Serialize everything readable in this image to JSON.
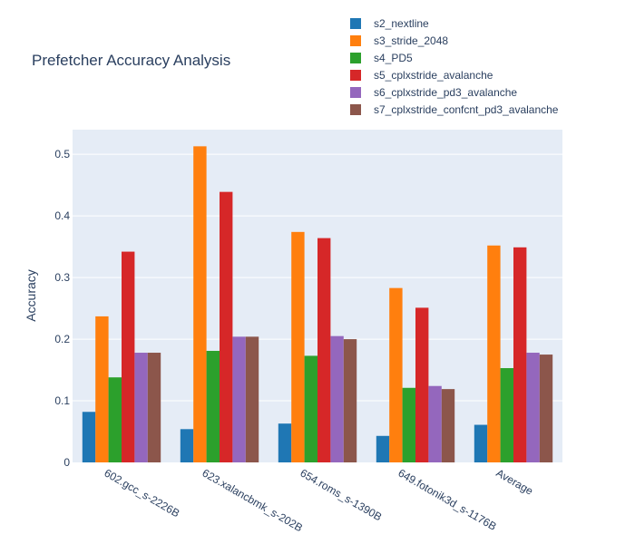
{
  "chart_data": {
    "type": "bar",
    "title": "Prefetcher Accuracy Analysis",
    "xlabel": "",
    "ylabel": "Accuracy",
    "ylim": [
      0,
      0.54
    ],
    "yticks": [
      0,
      0.1,
      0.2,
      0.3,
      0.4,
      0.5
    ],
    "ytick_labels": [
      "0",
      "0.1",
      "0.2",
      "0.3",
      "0.4",
      "0.5"
    ],
    "grid": true,
    "legend_position": "top-right",
    "categories": [
      "602.gcc_s-2226B",
      "623.xalancbmk_s-202B",
      "654.roms_s-1390B",
      "649.fotonik3d_s-1176B",
      "Average"
    ],
    "series": [
      {
        "name": "s2_nextline",
        "color": "#1f77b4",
        "values": [
          0.082,
          0.054,
          0.063,
          0.043,
          0.061
        ]
      },
      {
        "name": "s3_stride_2048",
        "color": "#ff7f0e",
        "values": [
          0.237,
          0.513,
          0.374,
          0.283,
          0.352
        ]
      },
      {
        "name": "s4_PD5",
        "color": "#2ca02c",
        "values": [
          0.138,
          0.181,
          0.173,
          0.121,
          0.153
        ]
      },
      {
        "name": "s5_cplxstride_avalanche",
        "color": "#d62728",
        "values": [
          0.342,
          0.439,
          0.364,
          0.251,
          0.349
        ]
      },
      {
        "name": "s6_cplxstride_pd3_avalanche",
        "color": "#9467bd",
        "values": [
          0.178,
          0.204,
          0.205,
          0.124,
          0.178
        ]
      },
      {
        "name": "s7_cplxstride_confcnt_pd3_avalanche",
        "color": "#8c564b",
        "values": [
          0.178,
          0.204,
          0.2,
          0.119,
          0.175
        ]
      }
    ]
  }
}
